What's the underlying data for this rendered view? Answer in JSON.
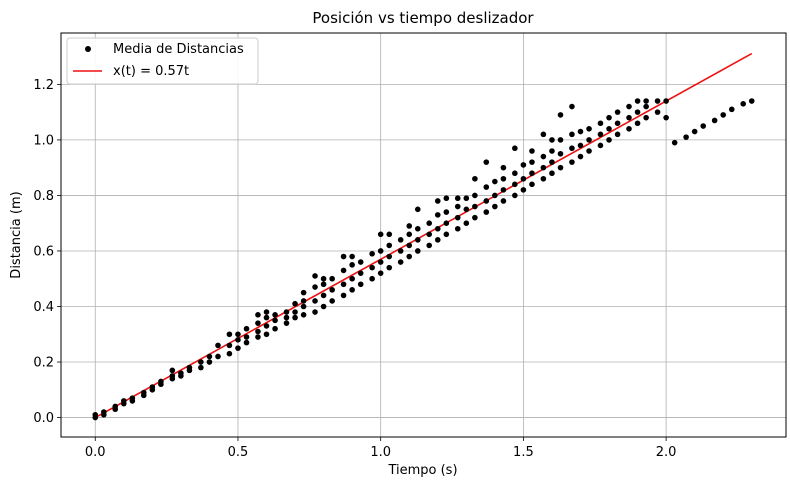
{
  "chart_data": {
    "type": "scatter",
    "title": "Posición vs tiempo deslizador",
    "xlabel": "Tiempo (s)",
    "ylabel": "Distancia (m)",
    "xlim": [
      -0.12,
      2.42
    ],
    "ylim": [
      -0.07,
      1.385
    ],
    "xticks": [
      0.0,
      0.5,
      1.0,
      1.5,
      2.0
    ],
    "xtick_labels": [
      "0.0",
      "0.5",
      "1.0",
      "1.5",
      "2.0"
    ],
    "yticks": [
      0.0,
      0.2,
      0.4,
      0.6,
      0.8,
      1.0,
      1.2
    ],
    "ytick_labels": [
      "0.0",
      "0.2",
      "0.4",
      "0.6",
      "0.8",
      "1.0",
      "1.2"
    ],
    "grid": true,
    "legend_position": "top-left",
    "series": [
      {
        "name": "Media de Distancias",
        "kind": "scatter",
        "color": "#000000",
        "points": [
          [
            0.0,
            0.0
          ],
          [
            0.0,
            0.01
          ],
          [
            0.03,
            0.01
          ],
          [
            0.03,
            0.02
          ],
          [
            0.07,
            0.03
          ],
          [
            0.07,
            0.04
          ],
          [
            0.1,
            0.05
          ],
          [
            0.1,
            0.06
          ],
          [
            0.13,
            0.06
          ],
          [
            0.13,
            0.07
          ],
          [
            0.17,
            0.08
          ],
          [
            0.17,
            0.09
          ],
          [
            0.2,
            0.1
          ],
          [
            0.2,
            0.11
          ],
          [
            0.23,
            0.12
          ],
          [
            0.23,
            0.13
          ],
          [
            0.27,
            0.14
          ],
          [
            0.27,
            0.15
          ],
          [
            0.27,
            0.17
          ],
          [
            0.3,
            0.15
          ],
          [
            0.3,
            0.16
          ],
          [
            0.33,
            0.17
          ],
          [
            0.33,
            0.18
          ],
          [
            0.37,
            0.18
          ],
          [
            0.37,
            0.2
          ],
          [
            0.4,
            0.2
          ],
          [
            0.4,
            0.22
          ],
          [
            0.43,
            0.22
          ],
          [
            0.43,
            0.26
          ],
          [
            0.47,
            0.23
          ],
          [
            0.47,
            0.26
          ],
          [
            0.47,
            0.3
          ],
          [
            0.5,
            0.25
          ],
          [
            0.5,
            0.28
          ],
          [
            0.5,
            0.3
          ],
          [
            0.53,
            0.27
          ],
          [
            0.53,
            0.29
          ],
          [
            0.53,
            0.32
          ],
          [
            0.57,
            0.29
          ],
          [
            0.57,
            0.31
          ],
          [
            0.57,
            0.34
          ],
          [
            0.57,
            0.37
          ],
          [
            0.6,
            0.3
          ],
          [
            0.6,
            0.33
          ],
          [
            0.6,
            0.36
          ],
          [
            0.6,
            0.38
          ],
          [
            0.63,
            0.32
          ],
          [
            0.63,
            0.35
          ],
          [
            0.63,
            0.37
          ],
          [
            0.67,
            0.34
          ],
          [
            0.67,
            0.36
          ],
          [
            0.67,
            0.38
          ],
          [
            0.7,
            0.36
          ],
          [
            0.7,
            0.38
          ],
          [
            0.7,
            0.41
          ],
          [
            0.73,
            0.37
          ],
          [
            0.73,
            0.4
          ],
          [
            0.73,
            0.42
          ],
          [
            0.73,
            0.45
          ],
          [
            0.77,
            0.38
          ],
          [
            0.77,
            0.42
          ],
          [
            0.77,
            0.47
          ],
          [
            0.77,
            0.51
          ],
          [
            0.8,
            0.4
          ],
          [
            0.8,
            0.44
          ],
          [
            0.8,
            0.48
          ],
          [
            0.8,
            0.5
          ],
          [
            0.83,
            0.42
          ],
          [
            0.83,
            0.46
          ],
          [
            0.83,
            0.5
          ],
          [
            0.87,
            0.44
          ],
          [
            0.87,
            0.48
          ],
          [
            0.87,
            0.53
          ],
          [
            0.87,
            0.58
          ],
          [
            0.9,
            0.46
          ],
          [
            0.9,
            0.5
          ],
          [
            0.9,
            0.55
          ],
          [
            0.9,
            0.58
          ],
          [
            0.93,
            0.48
          ],
          [
            0.93,
            0.52
          ],
          [
            0.93,
            0.56
          ],
          [
            0.97,
            0.5
          ],
          [
            0.97,
            0.54
          ],
          [
            0.97,
            0.59
          ],
          [
            1.0,
            0.52
          ],
          [
            1.0,
            0.56
          ],
          [
            1.0,
            0.6
          ],
          [
            1.0,
            0.66
          ],
          [
            1.03,
            0.54
          ],
          [
            1.03,
            0.58
          ],
          [
            1.03,
            0.62
          ],
          [
            1.03,
            0.66
          ],
          [
            1.07,
            0.56
          ],
          [
            1.07,
            0.6
          ],
          [
            1.07,
            0.64
          ],
          [
            1.1,
            0.58
          ],
          [
            1.1,
            0.62
          ],
          [
            1.1,
            0.66
          ],
          [
            1.1,
            0.69
          ],
          [
            1.13,
            0.6
          ],
          [
            1.13,
            0.64
          ],
          [
            1.13,
            0.68
          ],
          [
            1.13,
            0.75
          ],
          [
            1.17,
            0.62
          ],
          [
            1.17,
            0.66
          ],
          [
            1.17,
            0.7
          ],
          [
            1.2,
            0.64
          ],
          [
            1.2,
            0.68
          ],
          [
            1.2,
            0.73
          ],
          [
            1.2,
            0.78
          ],
          [
            1.23,
            0.66
          ],
          [
            1.23,
            0.7
          ],
          [
            1.23,
            0.74
          ],
          [
            1.23,
            0.79
          ],
          [
            1.27,
            0.68
          ],
          [
            1.27,
            0.72
          ],
          [
            1.27,
            0.76
          ],
          [
            1.27,
            0.79
          ],
          [
            1.3,
            0.7
          ],
          [
            1.3,
            0.75
          ],
          [
            1.3,
            0.79
          ],
          [
            1.33,
            0.72
          ],
          [
            1.33,
            0.76
          ],
          [
            1.33,
            0.8
          ],
          [
            1.33,
            0.86
          ],
          [
            1.37,
            0.74
          ],
          [
            1.37,
            0.78
          ],
          [
            1.37,
            0.83
          ],
          [
            1.37,
            0.92
          ],
          [
            1.4,
            0.76
          ],
          [
            1.4,
            0.8
          ],
          [
            1.4,
            0.85
          ],
          [
            1.43,
            0.78
          ],
          [
            1.43,
            0.82
          ],
          [
            1.43,
            0.86
          ],
          [
            1.43,
            0.9
          ],
          [
            1.47,
            0.8
          ],
          [
            1.47,
            0.84
          ],
          [
            1.47,
            0.88
          ],
          [
            1.47,
            0.97
          ],
          [
            1.5,
            0.82
          ],
          [
            1.5,
            0.86
          ],
          [
            1.5,
            0.91
          ],
          [
            1.53,
            0.84
          ],
          [
            1.53,
            0.88
          ],
          [
            1.53,
            0.92
          ],
          [
            1.53,
            0.96
          ],
          [
            1.57,
            0.86
          ],
          [
            1.57,
            0.9
          ],
          [
            1.57,
            0.94
          ],
          [
            1.57,
            1.02
          ],
          [
            1.6,
            0.88
          ],
          [
            1.6,
            0.92
          ],
          [
            1.6,
            0.96
          ],
          [
            1.6,
            1.0
          ],
          [
            1.63,
            0.9
          ],
          [
            1.63,
            0.95
          ],
          [
            1.63,
            1.0
          ],
          [
            1.63,
            1.09
          ],
          [
            1.67,
            0.92
          ],
          [
            1.67,
            0.97
          ],
          [
            1.67,
            1.02
          ],
          [
            1.67,
            1.12
          ],
          [
            1.7,
            0.94
          ],
          [
            1.7,
            0.98
          ],
          [
            1.7,
            1.03
          ],
          [
            1.73,
            0.96
          ],
          [
            1.73,
            1.0
          ],
          [
            1.73,
            1.04
          ],
          [
            1.77,
            0.98
          ],
          [
            1.77,
            1.02
          ],
          [
            1.77,
            1.06
          ],
          [
            1.8,
            1.0
          ],
          [
            1.8,
            1.04
          ],
          [
            1.8,
            1.08
          ],
          [
            1.83,
            1.02
          ],
          [
            1.83,
            1.06
          ],
          [
            1.83,
            1.1
          ],
          [
            1.87,
            1.04
          ],
          [
            1.87,
            1.08
          ],
          [
            1.87,
            1.12
          ],
          [
            1.9,
            1.06
          ],
          [
            1.9,
            1.1
          ],
          [
            1.9,
            1.14
          ],
          [
            1.93,
            1.08
          ],
          [
            1.93,
            1.12
          ],
          [
            1.93,
            1.14
          ],
          [
            1.97,
            1.1
          ],
          [
            1.97,
            1.14
          ],
          [
            2.0,
            1.08
          ],
          [
            2.0,
            1.14
          ],
          [
            2.03,
            0.99
          ],
          [
            2.07,
            1.01
          ],
          [
            2.1,
            1.03
          ],
          [
            2.13,
            1.05
          ],
          [
            2.17,
            1.07
          ],
          [
            2.2,
            1.09
          ],
          [
            2.23,
            1.11
          ],
          [
            2.27,
            1.13
          ],
          [
            2.3,
            1.14
          ]
        ]
      },
      {
        "name": "x(t) = 0.57t",
        "kind": "line",
        "color": "#ee1111",
        "points": [
          [
            0.0,
            0.0
          ],
          [
            2.3,
            1.311
          ]
        ]
      }
    ]
  }
}
